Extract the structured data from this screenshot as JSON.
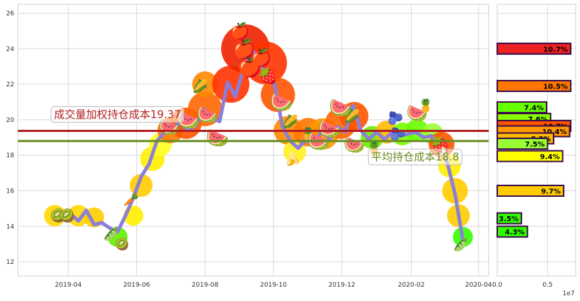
{
  "chart_data": [
    {
      "type": "line",
      "title": "",
      "xlabel": "",
      "ylabel": "",
      "ylim": [
        11.2,
        26.5
      ],
      "xlim": [
        "2019-02-15",
        "2020-04-10"
      ],
      "grid": true,
      "x_ticks": [
        "2019-04",
        "2019-06",
        "2019-08",
        "2019-10",
        "2019-12",
        "2020-02",
        "2020-04"
      ],
      "y_ticks": [
        12,
        14,
        16,
        18,
        20,
        22,
        24,
        26
      ],
      "series": [
        {
          "type": "line",
          "color": "#8B7FD9",
          "points": [
            [
              "2019-03-20",
              14.6
            ],
            [
              "2019-03-27",
              14.5
            ],
            [
              "2019-04-03",
              14.7
            ],
            [
              "2019-04-10",
              14.3
            ],
            [
              "2019-04-17",
              14.9
            ],
            [
              "2019-04-24",
              14.1
            ],
            [
              "2019-05-01",
              14.2
            ],
            [
              "2019-05-08",
              13.9
            ],
            [
              "2019-05-15",
              13.7
            ],
            [
              "2019-05-22",
              14.6
            ],
            [
              "2019-05-29",
              15.6
            ],
            [
              "2019-06-05",
              16.8
            ],
            [
              "2019-06-12",
              17.5
            ],
            [
              "2019-06-19",
              18.8
            ],
            [
              "2019-06-26",
              19.3
            ],
            [
              "2019-07-03",
              19.6
            ],
            [
              "2019-07-10",
              19.8
            ],
            [
              "2019-07-17",
              19.4
            ],
            [
              "2019-07-24",
              19.7
            ],
            [
              "2019-07-31",
              20.6
            ],
            [
              "2019-08-07",
              20.1
            ],
            [
              "2019-08-14",
              19.9
            ],
            [
              "2019-08-21",
              22.1
            ],
            [
              "2019-08-28",
              21.3
            ],
            [
              "2019-09-04",
              22.8
            ],
            [
              "2019-09-11",
              24.0
            ],
            [
              "2019-09-18",
              23.4
            ],
            [
              "2019-09-25",
              22.3
            ],
            [
              "2019-10-02",
              22.0
            ],
            [
              "2019-10-09",
              19.6
            ],
            [
              "2019-10-16",
              18.8
            ],
            [
              "2019-10-23",
              18.4
            ],
            [
              "2019-10-30",
              18.9
            ],
            [
              "2019-11-06",
              18.5
            ],
            [
              "2019-11-13",
              19.4
            ],
            [
              "2019-11-20",
              18.9
            ],
            [
              "2019-11-27",
              19.6
            ],
            [
              "2019-12-04",
              19.3
            ],
            [
              "2019-12-11",
              20.8
            ],
            [
              "2019-12-18",
              19.4
            ],
            [
              "2019-12-25",
              18.9
            ],
            [
              "2020-01-01",
              19.3
            ],
            [
              "2020-01-08",
              18.9
            ],
            [
              "2020-01-15",
              19.3
            ],
            [
              "2020-01-22",
              19.1
            ],
            [
              "2020-02-05",
              19.3
            ],
            [
              "2020-02-12",
              19.0
            ],
            [
              "2020-02-19",
              19.1
            ],
            [
              "2020-02-26",
              18.3
            ],
            [
              "2020-03-04",
              17.6
            ],
            [
              "2020-03-11",
              15.8
            ],
            [
              "2020-03-18",
              13.2
            ]
          ]
        }
      ],
      "reference_lines": [
        {
          "label": "成交量加权持仓成本19.37",
          "value": 19.37,
          "color": "#B22222",
          "label_x": "2019-03-16",
          "label_y": 20.3
        },
        {
          "label": "平均持仓成本18.8",
          "value": 18.8,
          "color": "#6B8E23",
          "label_x": "2019-12-24",
          "label_y": 17.9
        }
      ]
    },
    {
      "type": "bar",
      "orientation": "horizontal",
      "title": "",
      "ylim": [
        11.2,
        26.5
      ],
      "xlim": [
        0,
        0.78
      ],
      "x_ticks": [
        0.0,
        0.5
      ],
      "x_tick_labels": [
        "0.0",
        "0.5"
      ],
      "x_scale_label": "1e7",
      "bars": [
        {
          "price": 24.0,
          "value": 0.73,
          "label": "10.7%",
          "color": "#EE2222"
        },
        {
          "price": 21.9,
          "value": 0.73,
          "label": "10.5%",
          "color": "#FF7700"
        },
        {
          "price": 20.7,
          "value": 0.49,
          "label": "7.4%",
          "color": "#66FF00"
        },
        {
          "price": 20.05,
          "value": 0.53,
          "label": "7.6%",
          "color": "#88FF00"
        },
        {
          "price": 19.65,
          "value": 0.73,
          "label": "10.7%",
          "color": "#FF5500"
        },
        {
          "price": 19.35,
          "value": 0.72,
          "label": "10.4%",
          "color": "#FF9900"
        },
        {
          "price": 18.95,
          "value": 0.56,
          "label": "8.2%",
          "color": "#FFBB00"
        },
        {
          "price": 18.65,
          "value": 0.5,
          "label": "7.5%",
          "color": "#99FF33"
        },
        {
          "price": 17.95,
          "value": 0.65,
          "label": "9.4%",
          "color": "#FFFF00"
        },
        {
          "price": 16.0,
          "value": 0.66,
          "label": "9.7%",
          "color": "#FFCC00"
        },
        {
          "price": 14.45,
          "value": 0.24,
          "label": "3.5%",
          "color": "#33FF00"
        },
        {
          "price": 13.7,
          "value": 0.3,
          "label": "4.3%",
          "color": "#33FF00"
        }
      ]
    }
  ],
  "glow": [
    [
      "2019-03-20",
      14.6,
      "#FFD700",
      15
    ],
    [
      "2019-04-10",
      14.6,
      "#FFD700",
      15
    ],
    [
      "2019-04-24",
      14.5,
      "#FFCC00",
      14
    ],
    [
      "2019-05-15",
      13.4,
      "#66EE00",
      14
    ],
    [
      "2019-05-29",
      14.6,
      "#FFEE00",
      14
    ],
    [
      "2019-06-05",
      16.3,
      "#FFCC00",
      16
    ],
    [
      "2019-06-15",
      17.8,
      "#FFEE00",
      17
    ],
    [
      "2019-06-22",
      18.6,
      "#FFFF22",
      16
    ],
    [
      "2019-07-01",
      19.4,
      "#FF7700",
      18
    ],
    [
      "2019-07-15",
      19.8,
      "#FF5500",
      22
    ],
    [
      "2019-08-01",
      20.6,
      "#FF6600",
      24
    ],
    [
      "2019-08-01",
      22.0,
      "#FF8800",
      18
    ],
    [
      "2019-08-24",
      22.0,
      "#FF3300",
      26
    ],
    [
      "2019-09-06",
      24.0,
      "#EE2200",
      34
    ],
    [
      "2019-09-24",
      23.2,
      "#FF3300",
      30
    ],
    [
      "2019-10-05",
      21.4,
      "#FF5500",
      24
    ],
    [
      "2019-10-14",
      19.4,
      "#FF8800",
      20
    ],
    [
      "2019-10-20",
      18.2,
      "#FFEE22",
      16
    ],
    [
      "2019-11-01",
      19.3,
      "#FF7700",
      20
    ],
    [
      "2019-11-14",
      19.2,
      "#FF9900",
      22
    ],
    [
      "2019-11-30",
      19.8,
      "#FF6600",
      22
    ],
    [
      "2019-12-12",
      20.2,
      "#FF5500",
      20
    ],
    [
      "2019-12-28",
      19.0,
      "#66EE00",
      16
    ],
    [
      "2020-01-10",
      19.3,
      "#FFBB00",
      16
    ],
    [
      "2020-01-24",
      19.2,
      "#77FF00",
      16
    ],
    [
      "2020-02-06",
      19.4,
      "#66FF00",
      16
    ],
    [
      "2020-02-20",
      19.2,
      "#99FF33",
      15
    ],
    [
      "2020-02-28",
      18.6,
      "#FF5500",
      18
    ],
    [
      "2020-03-06",
      17.4,
      "#FFEE00",
      16
    ],
    [
      "2020-03-11",
      16.0,
      "#FFCC00",
      18
    ],
    [
      "2020-03-14",
      14.6,
      "#FFCC00",
      16
    ],
    [
      "2020-03-18",
      13.4,
      "#33FF00",
      14
    ]
  ],
  "fruits": [
    [
      "2019-03-23",
      14.6,
      "🥝",
      18
    ],
    [
      "2019-03-31",
      14.6,
      "🥝",
      18
    ],
    [
      "2019-05-09",
      13.6,
      "🫛",
      18
    ],
    [
      "2019-05-19",
      13.0,
      "🥝",
      16
    ],
    [
      "2019-05-27",
      15.5,
      "🥕",
      18
    ],
    [
      "2019-06-30",
      19.6,
      "🍉",
      24
    ],
    [
      "2019-07-17",
      20.0,
      "🍉",
      26
    ],
    [
      "2019-07-28",
      21.9,
      "🌽",
      18
    ],
    [
      "2019-08-03",
      20.3,
      "🍉",
      24
    ],
    [
      "2019-08-12",
      19.0,
      "🍉",
      26
    ],
    [
      "2019-09-01",
      25.0,
      "🍎",
      22
    ],
    [
      "2019-09-05",
      24.0,
      "🍎",
      26
    ],
    [
      "2019-09-10",
      23.0,
      "🍎",
      28
    ],
    [
      "2019-09-20",
      23.5,
      "🍎",
      24
    ],
    [
      "2019-09-26",
      22.5,
      "🍓",
      22
    ],
    [
      "2019-10-08",
      21.0,
      "🍉",
      26
    ],
    [
      "2019-10-16",
      19.9,
      "🌽",
      18
    ],
    [
      "2019-10-18",
      17.8,
      "🍌",
      18
    ],
    [
      "2019-11-01",
      19.2,
      "🍍",
      18
    ],
    [
      "2019-11-10",
      18.8,
      "🍉",
      26
    ],
    [
      "2019-11-20",
      19.5,
      "🍉",
      26
    ],
    [
      "2019-11-30",
      20.7,
      "🍉",
      26
    ],
    [
      "2019-12-10",
      20.2,
      "🌽",
      18
    ],
    [
      "2019-12-12",
      18.6,
      "🍉",
      24
    ],
    [
      "2019-12-30",
      18.4,
      "🍍",
      18
    ],
    [
      "2020-01-18",
      20.1,
      "🫐",
      18
    ],
    [
      "2020-01-20",
      19.2,
      "🫐",
      18
    ],
    [
      "2020-02-06",
      20.4,
      "🍉",
      24
    ],
    [
      "2020-02-14",
      20.8,
      "🍍",
      18
    ],
    [
      "2020-02-27",
      18.6,
      "🍓",
      22
    ],
    [
      "2020-03-01",
      18.1,
      "🍌",
      18
    ],
    [
      "2020-03-16",
      13.0,
      "🫛",
      18
    ]
  ]
}
